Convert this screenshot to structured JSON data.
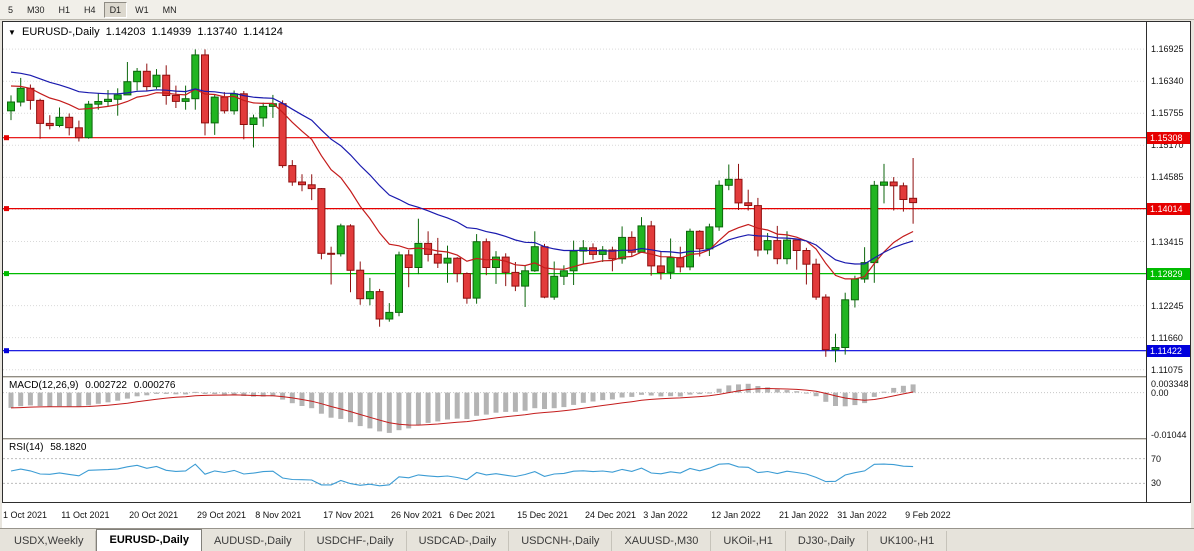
{
  "toolbar": {
    "timeframes": [
      {
        "label": "5",
        "active": false
      },
      {
        "label": "M30",
        "active": false
      },
      {
        "label": "H1",
        "active": false
      },
      {
        "label": "H4",
        "active": false
      },
      {
        "label": "D1",
        "active": true
      },
      {
        "label": "W1",
        "active": false
      },
      {
        "label": "MN",
        "active": false
      }
    ]
  },
  "chart_header": {
    "dropdown_icon": "▼",
    "symbol": "EURUSD-,Daily",
    "open": "1.14203",
    "high": "1.14939",
    "low": "1.13740",
    "close": "1.14124"
  },
  "indicators": {
    "macd": {
      "label": "MACD(12,26,9)",
      "main_value": "0.002722",
      "signal_value": "0.000276",
      "axis_labels": [
        {
          "text": "0.003348",
          "value": 0.003348
        },
        {
          "text": "0.00",
          "value": 0
        },
        {
          "text": "-0.01044",
          "value": -0.01044
        }
      ]
    },
    "rsi": {
      "label": "RSI(14)",
      "value": "58.1820",
      "levels": [
        {
          "text": "70",
          "value": 70
        },
        {
          "text": "30",
          "value": 30
        }
      ]
    }
  },
  "price_axis": {
    "labels": [
      {
        "text": "1.16925",
        "value": 1.16925
      },
      {
        "text": "1.16340",
        "value": 1.1634
      },
      {
        "text": "1.15755",
        "value": 1.15755
      },
      {
        "text": "1.15170",
        "value": 1.1517
      },
      {
        "text": "1.14585",
        "value": 1.14585
      },
      {
        "text": "1.13415",
        "value": 1.13415
      },
      {
        "text": "1.12245",
        "value": 1.12245
      },
      {
        "text": "1.11660",
        "value": 1.1166
      },
      {
        "text": "1.11075",
        "value": 1.11075
      }
    ]
  },
  "hlines": [
    {
      "text": "1.15308",
      "value": 1.15308,
      "color": "#e60000"
    },
    {
      "text": "1.14014",
      "value": 1.14014,
      "color": "#e60000"
    },
    {
      "text": "1.12829",
      "value": 1.12829,
      "color": "#00bb00"
    },
    {
      "text": "1.11422",
      "value": 1.11422,
      "color": "#0000dd"
    }
  ],
  "date_axis": [
    {
      "text": "1 Oct 2021",
      "index": 0
    },
    {
      "text": "11 Oct 2021",
      "index": 6
    },
    {
      "text": "20 Oct 2021",
      "index": 13
    },
    {
      "text": "29 Oct 2021",
      "index": 20
    },
    {
      "text": "8 Nov 2021",
      "index": 26
    },
    {
      "text": "17 Nov 2021",
      "index": 33
    },
    {
      "text": "26 Nov 2021",
      "index": 40
    },
    {
      "text": "6 Dec 2021",
      "index": 46
    },
    {
      "text": "15 Dec 2021",
      "index": 53
    },
    {
      "text": "24 Dec 2021",
      "index": 60
    },
    {
      "text": "3 Jan 2022",
      "index": 66
    },
    {
      "text": "12 Jan 2022",
      "index": 73
    },
    {
      "text": "21 Jan 2022",
      "index": 80
    },
    {
      "text": "31 Jan 2022",
      "index": 86
    },
    {
      "text": "9 Feb 2022",
      "index": 93
    }
  ],
  "tabs": [
    {
      "label": "USDX,Weekly",
      "active": false
    },
    {
      "label": "EURUSD-,Daily",
      "active": true
    },
    {
      "label": "AUDUSD-,Daily",
      "active": false
    },
    {
      "label": "USDCHF-,Daily",
      "active": false
    },
    {
      "label": "USDCAD-,Daily",
      "active": false
    },
    {
      "label": "USDCNH-,Daily",
      "active": false
    },
    {
      "label": "XAUUSD-,M30",
      "active": false
    },
    {
      "label": "UKOil-,H1",
      "active": false
    },
    {
      "label": "DJ30-,Daily",
      "active": false
    },
    {
      "label": "UK100-,H1",
      "active": false
    }
  ],
  "chart_data": {
    "type": "candlestick",
    "title": "EURUSD-,Daily",
    "last_ohlc": {
      "open": 1.14203,
      "high": 1.14939,
      "low": 1.1374,
      "close": 1.14124
    },
    "price_range": {
      "min": 1.1096,
      "max": 1.1742
    },
    "grid_prices": [
      1.16925,
      1.1634,
      1.15755,
      1.1517,
      1.14585,
      1.14,
      1.13415,
      1.1283,
      1.12245,
      1.1166,
      1.11075
    ],
    "colors": {
      "bull": {
        "fill": "#21b521",
        "border": "#0c660c"
      },
      "bear": {
        "fill": "#e23b3b",
        "border": "#8f0f0f"
      },
      "grid": "#d9d9d9",
      "macd_bar": "#b4b4b4",
      "macd_signal": "#c41c1c",
      "rsi_line": "#3c9cd4",
      "rsi_level": "#bdbdbd"
    },
    "overlays": [
      {
        "name": "ma-fast-red",
        "period": 13,
        "seed": 1.163,
        "color": "#c41c1c"
      },
      {
        "name": "ma-slow-blue",
        "period": 26,
        "seed": 1.1655,
        "color": "#1a1aae"
      }
    ],
    "macd": {
      "fast": 12,
      "slow": 26,
      "signal": 9,
      "seed_fast": 1.1605,
      "seed_slow": 1.1645,
      "range": {
        "min": -0.0112,
        "max": 0.0036
      }
    },
    "rsi": {
      "period": 14,
      "range": {
        "min": 0,
        "max": 100
      }
    },
    "candles": [
      [
        1.158,
        1.1608,
        1.1563,
        1.1596
      ],
      [
        1.1596,
        1.164,
        1.1588,
        1.1621
      ],
      [
        1.1621,
        1.1628,
        1.1582,
        1.1599
      ],
      [
        1.1599,
        1.1602,
        1.1529,
        1.1557
      ],
      [
        1.1557,
        1.1572,
        1.1546,
        1.1553
      ],
      [
        1.1553,
        1.1586,
        1.155,
        1.1568
      ],
      [
        1.1568,
        1.1575,
        1.1535,
        1.1549
      ],
      [
        1.1549,
        1.1562,
        1.1524,
        1.1531
      ],
      [
        1.1531,
        1.1598,
        1.1529,
        1.1592
      ],
      [
        1.1592,
        1.1612,
        1.1582,
        1.1597
      ],
      [
        1.1597,
        1.1618,
        1.1588,
        1.1601
      ],
      [
        1.1601,
        1.1621,
        1.1571,
        1.1609
      ],
      [
        1.1609,
        1.1669,
        1.1609,
        1.1633
      ],
      [
        1.1633,
        1.1658,
        1.1617,
        1.1652
      ],
      [
        1.1652,
        1.1666,
        1.1617,
        1.1624
      ],
      [
        1.1624,
        1.1656,
        1.162,
        1.1645
      ],
      [
        1.1645,
        1.1663,
        1.1591,
        1.1608
      ],
      [
        1.1608,
        1.1626,
        1.1585,
        1.1597
      ],
      [
        1.1597,
        1.1626,
        1.1582,
        1.1602
      ],
      [
        1.1602,
        1.1692,
        1.1582,
        1.1682
      ],
      [
        1.1682,
        1.1692,
        1.1535,
        1.1558
      ],
      [
        1.1558,
        1.1609,
        1.1536,
        1.1605
      ],
      [
        1.1605,
        1.1614,
        1.1575,
        1.158
      ],
      [
        1.158,
        1.1617,
        1.1573,
        1.1611
      ],
      [
        1.1611,
        1.1616,
        1.1528,
        1.1555
      ],
      [
        1.1555,
        1.1573,
        1.1513,
        1.1567
      ],
      [
        1.1567,
        1.1595,
        1.1551,
        1.1588
      ],
      [
        1.1588,
        1.1609,
        1.1567,
        1.1593
      ],
      [
        1.1593,
        1.1599,
        1.1476,
        1.148
      ],
      [
        1.148,
        1.149,
        1.1443,
        1.145
      ],
      [
        1.145,
        1.1464,
        1.1433,
        1.1445
      ],
      [
        1.1445,
        1.1464,
        1.1417,
        1.1438
      ],
      [
        1.1438,
        1.1439,
        1.1309,
        1.132
      ],
      [
        1.132,
        1.1332,
        1.1263,
        1.1319
      ],
      [
        1.1319,
        1.1374,
        1.1314,
        1.137
      ],
      [
        1.137,
        1.1373,
        1.1249,
        1.1289
      ],
      [
        1.1289,
        1.1305,
        1.1226,
        1.1237
      ],
      [
        1.1237,
        1.1275,
        1.1225,
        1.125
      ],
      [
        1.125,
        1.1255,
        1.1186,
        1.12
      ],
      [
        1.12,
        1.1229,
        1.1195,
        1.1212
      ],
      [
        1.1212,
        1.1323,
        1.1205,
        1.1317
      ],
      [
        1.1317,
        1.1326,
        1.1258,
        1.1294
      ],
      [
        1.1294,
        1.1383,
        1.1282,
        1.1338
      ],
      [
        1.1338,
        1.136,
        1.1305,
        1.1318
      ],
      [
        1.1318,
        1.1348,
        1.1293,
        1.1302
      ],
      [
        1.1302,
        1.1334,
        1.1266,
        1.1311
      ],
      [
        1.1311,
        1.1313,
        1.1267,
        1.1283
      ],
      [
        1.1283,
        1.1285,
        1.1228,
        1.1238
      ],
      [
        1.1238,
        1.1355,
        1.1228,
        1.1341
      ],
      [
        1.1341,
        1.1347,
        1.128,
        1.1294
      ],
      [
        1.1294,
        1.1324,
        1.1264,
        1.1313
      ],
      [
        1.1313,
        1.132,
        1.126,
        1.1285
      ],
      [
        1.1285,
        1.1304,
        1.1251,
        1.126
      ],
      [
        1.126,
        1.1298,
        1.1222,
        1.1288
      ],
      [
        1.1288,
        1.136,
        1.1286,
        1.1332
      ],
      [
        1.1332,
        1.1337,
        1.1238,
        1.124
      ],
      [
        1.124,
        1.1305,
        1.1235,
        1.1278
      ],
      [
        1.1278,
        1.1298,
        1.1262,
        1.1288
      ],
      [
        1.1288,
        1.1343,
        1.1262,
        1.1324
      ],
      [
        1.1324,
        1.1344,
        1.13,
        1.133
      ],
      [
        1.133,
        1.1338,
        1.1308,
        1.1318
      ],
      [
        1.1318,
        1.1333,
        1.1304,
        1.1326
      ],
      [
        1.1326,
        1.1332,
        1.1287,
        1.131
      ],
      [
        1.131,
        1.1369,
        1.1301,
        1.1349
      ],
      [
        1.1349,
        1.136,
        1.1315,
        1.1322
      ],
      [
        1.1322,
        1.1386,
        1.1321,
        1.137
      ],
      [
        1.137,
        1.1379,
        1.1279,
        1.1297
      ],
      [
        1.1297,
        1.1323,
        1.1272,
        1.1285
      ],
      [
        1.1285,
        1.1347,
        1.1273,
        1.1312
      ],
      [
        1.1312,
        1.1332,
        1.1285,
        1.1295
      ],
      [
        1.1295,
        1.1365,
        1.1289,
        1.136
      ],
      [
        1.136,
        1.1362,
        1.1314,
        1.1328
      ],
      [
        1.1328,
        1.1374,
        1.1315,
        1.1368
      ],
      [
        1.1368,
        1.1453,
        1.1361,
        1.1444
      ],
      [
        1.1444,
        1.1482,
        1.1435,
        1.1455
      ],
      [
        1.1455,
        1.1483,
        1.1399,
        1.1412
      ],
      [
        1.1412,
        1.1436,
        1.1398,
        1.1407
      ],
      [
        1.1407,
        1.1421,
        1.1314,
        1.1326
      ],
      [
        1.1326,
        1.1357,
        1.1318,
        1.1343
      ],
      [
        1.1343,
        1.137,
        1.13,
        1.131
      ],
      [
        1.131,
        1.136,
        1.13,
        1.1344
      ],
      [
        1.1344,
        1.1344,
        1.129,
        1.1325
      ],
      [
        1.1325,
        1.133,
        1.1263,
        1.13
      ],
      [
        1.13,
        1.131,
        1.1235,
        1.124
      ],
      [
        1.124,
        1.1245,
        1.1131,
        1.1144
      ],
      [
        1.1144,
        1.1173,
        1.1121,
        1.1148
      ],
      [
        1.1148,
        1.1248,
        1.1135,
        1.1235
      ],
      [
        1.1235,
        1.1279,
        1.1221,
        1.1273
      ],
      [
        1.1273,
        1.1331,
        1.1266,
        1.1303
      ],
      [
        1.1303,
        1.1452,
        1.1266,
        1.1444
      ],
      [
        1.1444,
        1.1483,
        1.1411,
        1.145
      ],
      [
        1.145,
        1.1459,
        1.1398,
        1.1443
      ],
      [
        1.1443,
        1.1449,
        1.1396,
        1.1418
      ],
      [
        1.14203,
        1.14939,
        1.1374,
        1.14124
      ]
    ]
  }
}
